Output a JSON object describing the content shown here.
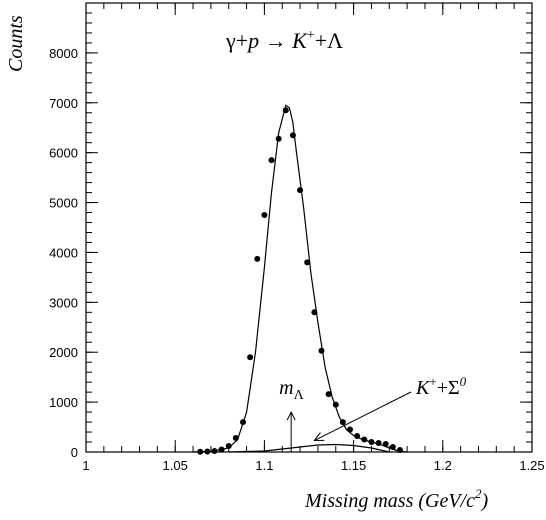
{
  "chart_data": {
    "type": "scatter",
    "title": "γ+p → K⁺+Λ",
    "title_parts": {
      "gamma_p": "γ+",
      "p": "p",
      "arrow": " → ",
      "K": "K",
      "K_sup": "+",
      "plus_lambda": "+Λ"
    },
    "ylabel": "Counts",
    "xlabel": "Missing mass (GeV/c²)",
    "xlabel_parts": {
      "main": "Missing mass (GeV/c",
      "sup": "2",
      "close": ")"
    },
    "xlim": [
      1.0,
      1.25
    ],
    "ylim": [
      0,
      9000
    ],
    "x_ticks": [
      1,
      1.05,
      1.1,
      1.15,
      1.2,
      1.25
    ],
    "x_tick_labels": [
      "1",
      "1.05",
      "1.1",
      "1.15",
      "1.2",
      "1.25"
    ],
    "y_ticks": [
      0,
      1000,
      2000,
      3000,
      4000,
      5000,
      6000,
      7000,
      8000
    ],
    "y_tick_labels": [
      "0",
      "1000",
      "2000",
      "3000",
      "4000",
      "5000",
      "6000",
      "7000",
      "8000"
    ],
    "grid": false,
    "series": [
      {
        "kind": "points",
        "x": [
          1.064,
          1.068,
          1.072,
          1.076,
          1.08,
          1.084,
          1.088,
          1.092,
          1.096,
          1.1,
          1.104,
          1.108,
          1.112,
          1.116,
          1.12,
          1.124,
          1.128,
          1.132,
          1.136,
          1.14,
          1.144,
          1.148,
          1.152,
          1.156,
          1.16,
          1.164,
          1.168,
          1.172,
          1.176
        ],
        "y": [
          5,
          10,
          20,
          50,
          120,
          280,
          600,
          1900,
          3870,
          4750,
          5850,
          6280,
          6850,
          6350,
          5250,
          3800,
          2800,
          2030,
          1160,
          950,
          600,
          450,
          320,
          250,
          200,
          180,
          160,
          100,
          40
        ]
      },
      {
        "kind": "line",
        "x": [
          1.06,
          1.07,
          1.08,
          1.085,
          1.09,
          1.095,
          1.1,
          1.104,
          1.108,
          1.112,
          1.114,
          1.116,
          1.118,
          1.122,
          1.126,
          1.13,
          1.134,
          1.138,
          1.142,
          1.146,
          1.15,
          1.155,
          1.16,
          1.165,
          1.17,
          1.175,
          1.18
        ],
        "y": [
          0,
          10,
          80,
          250,
          800,
          2000,
          3700,
          5200,
          6400,
          6950,
          6900,
          6600,
          6000,
          4900,
          3600,
          2600,
          1700,
          1100,
          700,
          450,
          330,
          250,
          200,
          150,
          80,
          20,
          0
        ]
      },
      {
        "kind": "line",
        "x": [
          1.08,
          1.1,
          1.11,
          1.12,
          1.13,
          1.14,
          1.15,
          1.16,
          1.165,
          1.17
        ],
        "y": [
          0,
          20,
          60,
          100,
          140,
          150,
          130,
          80,
          40,
          0
        ]
      }
    ],
    "annotations": [
      {
        "text": "m",
        "sub": "Λ",
        "arrow_x": 1.115,
        "arrow_y0": 0,
        "arrow_y1": 800
      },
      {
        "text": "K",
        "sup": "+",
        "rest": "+Σ",
        "sup2": "0",
        "arrow_target_x": 1.128,
        "arrow_target_y": 230
      }
    ]
  }
}
